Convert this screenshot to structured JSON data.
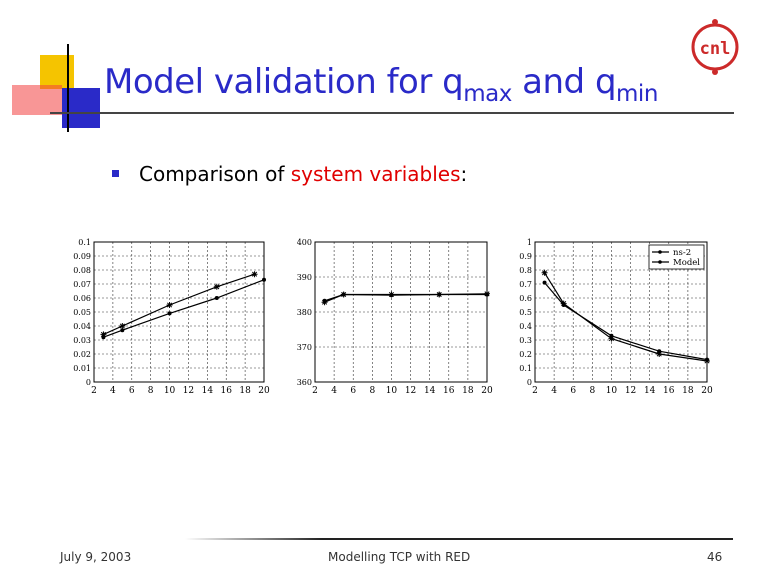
{
  "slide": {
    "title_main": "Model validation for q",
    "title_sub1": "max",
    "title_mid": " and q",
    "title_sub2": "min",
    "bullet_prefix": "Comparison of ",
    "bullet_highlight": "system variables",
    "bullet_suffix": ":",
    "footer_date": "July 9, 2003",
    "footer_title": "Modelling TCP with RED",
    "footer_page": "46",
    "logo_text": "cnl"
  },
  "colors": {
    "title": "#2a2ac8",
    "highlight": "#e00000",
    "accent_yellow": "#f5c400",
    "accent_red": "#f24040",
    "accent_blue": "#2a2ac8",
    "logo": "#cc2a2a"
  },
  "chart_data": [
    {
      "type": "line",
      "xlim": [
        2,
        20
      ],
      "ylim": [
        0,
        0.1
      ],
      "xticks": [
        "2",
        "4",
        "6",
        "8",
        "10",
        "12",
        "14",
        "16",
        "18",
        "20"
      ],
      "yticks": [
        "0",
        "0.01",
        "0.02",
        "0.03",
        "0.04",
        "0.05",
        "0.06",
        "0.07",
        "0.08",
        "0.09",
        "0.1"
      ],
      "grid": true,
      "series": [
        {
          "x": [
            3,
            5,
            10,
            15,
            19
          ],
          "y": [
            0.034,
            0.04,
            0.055,
            0.068,
            0.077
          ],
          "marker": "star"
        },
        {
          "x": [
            3,
            5,
            10,
            15,
            20
          ],
          "y": [
            0.032,
            0.037,
            0.049,
            0.06,
            0.073
          ],
          "marker": "dot"
        }
      ]
    },
    {
      "type": "line",
      "xlim": [
        2,
        20
      ],
      "ylim": [
        360,
        400
      ],
      "xticks": [
        "2",
        "4",
        "6",
        "8",
        "10",
        "12",
        "14",
        "16",
        "18",
        "20"
      ],
      "yticks": [
        "360",
        "370",
        "380",
        "390",
        "400"
      ],
      "grid": true,
      "series": [
        {
          "x": [
            3,
            5,
            10,
            15,
            20
          ],
          "y": [
            382.8,
            385,
            385,
            385,
            385.2
          ],
          "marker": "star"
        },
        {
          "x": [
            3,
            5,
            10,
            15,
            20
          ],
          "y": [
            383.2,
            385,
            384.8,
            385,
            385
          ],
          "marker": "dot"
        }
      ]
    },
    {
      "type": "line",
      "xlim": [
        2,
        20
      ],
      "ylim": [
        0,
        1
      ],
      "xticks": [
        "2",
        "4",
        "6",
        "8",
        "10",
        "12",
        "14",
        "16",
        "18",
        "20"
      ],
      "yticks": [
        "0",
        "0.1",
        "0.2",
        "0.3",
        "0.4",
        "0.5",
        "0.6",
        "0.7",
        "0.8",
        "0.9",
        "1"
      ],
      "grid": true,
      "legend": "top-right",
      "series": [
        {
          "name": "ns-2",
          "x": [
            3,
            5,
            10,
            15,
            20
          ],
          "y": [
            0.78,
            0.56,
            0.31,
            0.2,
            0.15
          ],
          "marker": "star"
        },
        {
          "name": "Model",
          "x": [
            3,
            5,
            10,
            15,
            20
          ],
          "y": [
            0.71,
            0.55,
            0.33,
            0.22,
            0.16
          ],
          "marker": "dot"
        }
      ]
    }
  ]
}
